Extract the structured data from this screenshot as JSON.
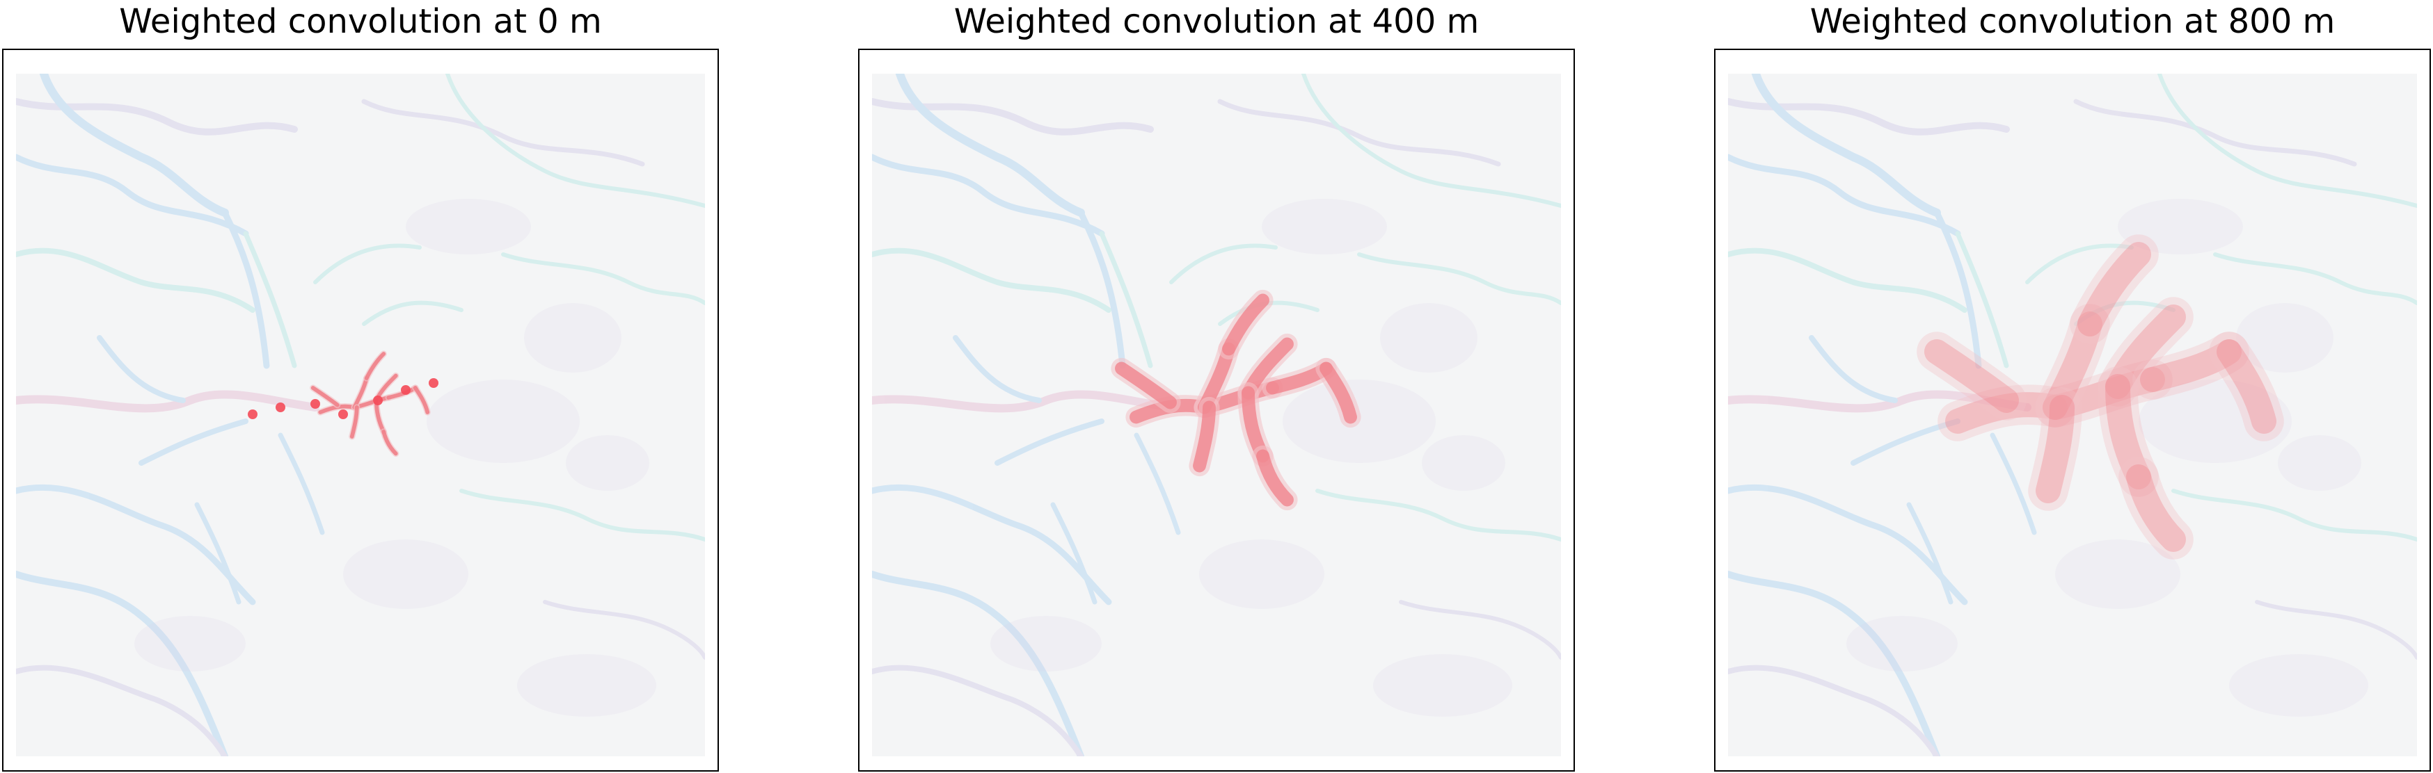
{
  "figure": {
    "panels": [
      {
        "title": "Weighted convolution at 0 m",
        "intensity": 0.9,
        "spread": 0.35
      },
      {
        "title": "Weighted convolution at 400 m",
        "intensity": 0.75,
        "spread": 0.7
      },
      {
        "title": "Weighted convolution at 800 m",
        "intensity": 0.35,
        "spread": 1.0
      }
    ],
    "colors": {
      "background": "#f4f5f6",
      "channel_blue": "#b9d9f2",
      "channel_cyan": "#bfeae6",
      "channel_purple": "#d8d3ea",
      "channel_pink": "#e9c4d8",
      "highlight_red": "#f07f88",
      "highlight_red_strong": "#f44a58",
      "highlight_pink": "#f2c3c8"
    }
  }
}
